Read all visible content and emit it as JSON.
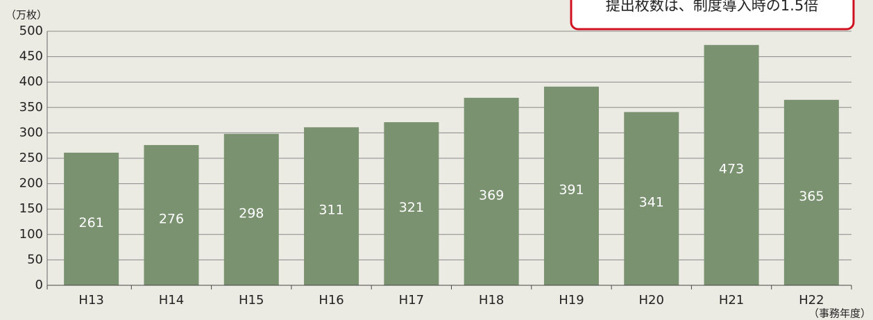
{
  "chart_data": {
    "type": "bar",
    "annotation": "提出枚数は、制度導入時の1.5倍",
    "y_axis_label": "（万枚）",
    "x_axis_label": "（事務年度）",
    "categories": [
      "H13",
      "H14",
      "H15",
      "H16",
      "H17",
      "H18",
      "H19",
      "H20",
      "H21",
      "H22"
    ],
    "values": [
      261,
      276,
      298,
      311,
      321,
      369,
      391,
      341,
      473,
      365
    ],
    "color": "#7a9270",
    "ylim": [
      0,
      500
    ],
    "yticks": [
      0,
      50,
      100,
      150,
      200,
      250,
      300,
      350,
      400,
      450,
      500
    ],
    "grid": true
  }
}
